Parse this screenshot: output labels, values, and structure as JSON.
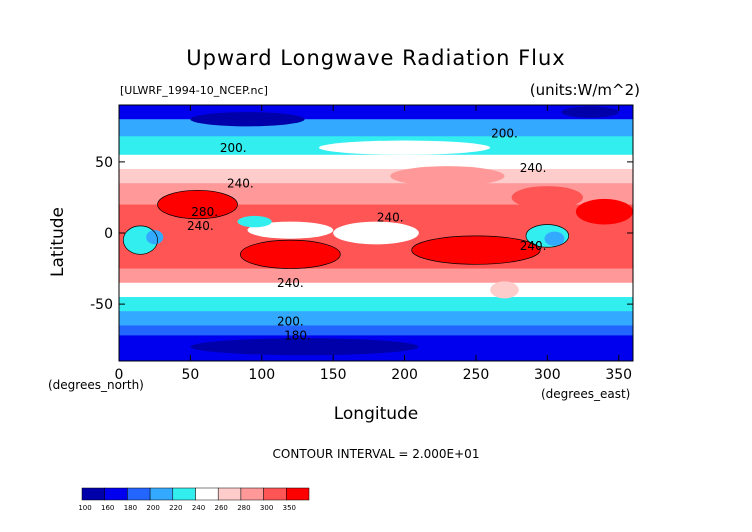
{
  "header": {
    "title": "Upward Longwave Radiation Flux",
    "file_tag": "[ULWRF_1994-10_NCEP.nc]",
    "units": "(units:W/m^2)"
  },
  "footer": {
    "contour_interval": "CONTOUR INTERVAL = 2.000E+01"
  },
  "chart_data": {
    "type": "heatmap",
    "title": "Upward Longwave Radiation Flux",
    "xlabel": "Longitude",
    "ylabel": "Latitude",
    "x_unit_note": "(degrees_east)",
    "y_unit_note": "(degrees_north)",
    "xlim": [
      0,
      360
    ],
    "ylim": [
      -90,
      90
    ],
    "x_ticks": [
      0,
      50,
      100,
      150,
      200,
      250,
      300,
      350
    ],
    "y_ticks": [
      -50,
      0,
      50
    ],
    "contour_labels": [
      {
        "text": "200.",
        "lon": 80,
        "lat": 57
      },
      {
        "text": "200.",
        "lon": 270,
        "lat": 67
      },
      {
        "text": "240.",
        "lon": 85,
        "lat": 32
      },
      {
        "text": "240.",
        "lon": 290,
        "lat": 43
      },
      {
        "text": "280.",
        "lon": 60,
        "lat": 12
      },
      {
        "text": "240.",
        "lon": 57,
        "lat": 2
      },
      {
        "text": "240.",
        "lon": 190,
        "lat": 8
      },
      {
        "text": "240.",
        "lon": 290,
        "lat": -12
      },
      {
        "text": "240.",
        "lon": 120,
        "lat": -38
      },
      {
        "text": "200.",
        "lon": 120,
        "lat": -65
      },
      {
        "text": "180.",
        "lon": 125,
        "lat": -75
      }
    ],
    "legend": {
      "placement": "bottom-left",
      "levels": [
        "100",
        "160",
        "180",
        "200",
        "220",
        "240",
        "260",
        "280",
        "300",
        "350"
      ],
      "colors": [
        "#0000aa",
        "#0000ee",
        "#2266ff",
        "#33aaff",
        "#33eeee",
        "#ffffff",
        "#ffcccc",
        "#ff9999",
        "#ff5555",
        "#ff0000"
      ]
    }
  }
}
